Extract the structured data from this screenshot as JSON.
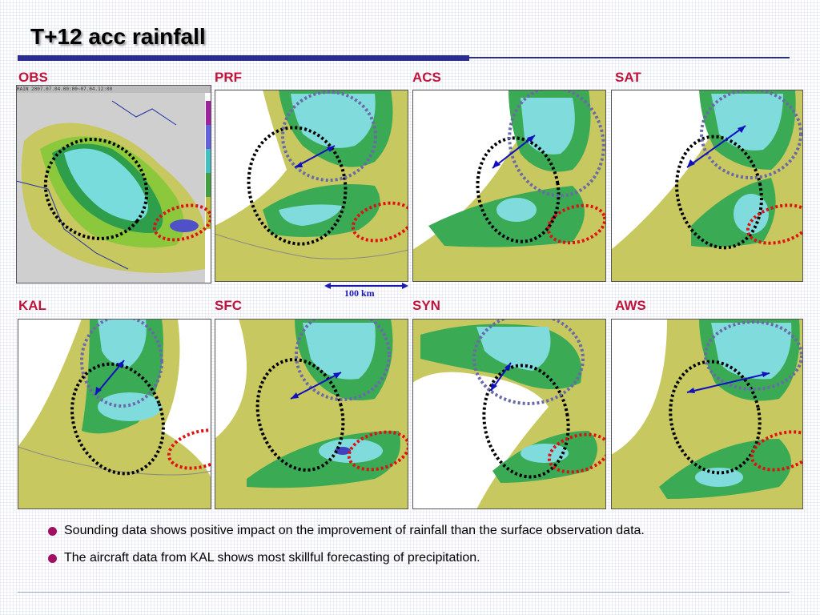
{
  "title": "T+12 acc rainfall",
  "obs_header": "RAIN   2007.07.04.00:00~07.04.12:00",
  "scale_label": "100 km",
  "panels": [
    {
      "label": "OBS"
    },
    {
      "label": "PRF"
    },
    {
      "label": "ACS"
    },
    {
      "label": "SAT"
    },
    {
      "label": "KAL"
    },
    {
      "label": "SFC"
    },
    {
      "label": "SYN"
    },
    {
      "label": "AWS"
    }
  ],
  "bullets": [
    "Sounding data shows positive impact on the improvement of rainfall than the surface observation data.",
    "The aircraft data from KAL shows most skillful forecasting of precipitation."
  ],
  "colors": {
    "title_rule": "#2b2c8f",
    "label": "#c0143c",
    "bullet_dot": "#a01060",
    "ellipse_black": "#000000",
    "ellipse_blue": "#6a6aa8",
    "ellipse_red": "#e01010",
    "arrow": "#1010c0"
  }
}
